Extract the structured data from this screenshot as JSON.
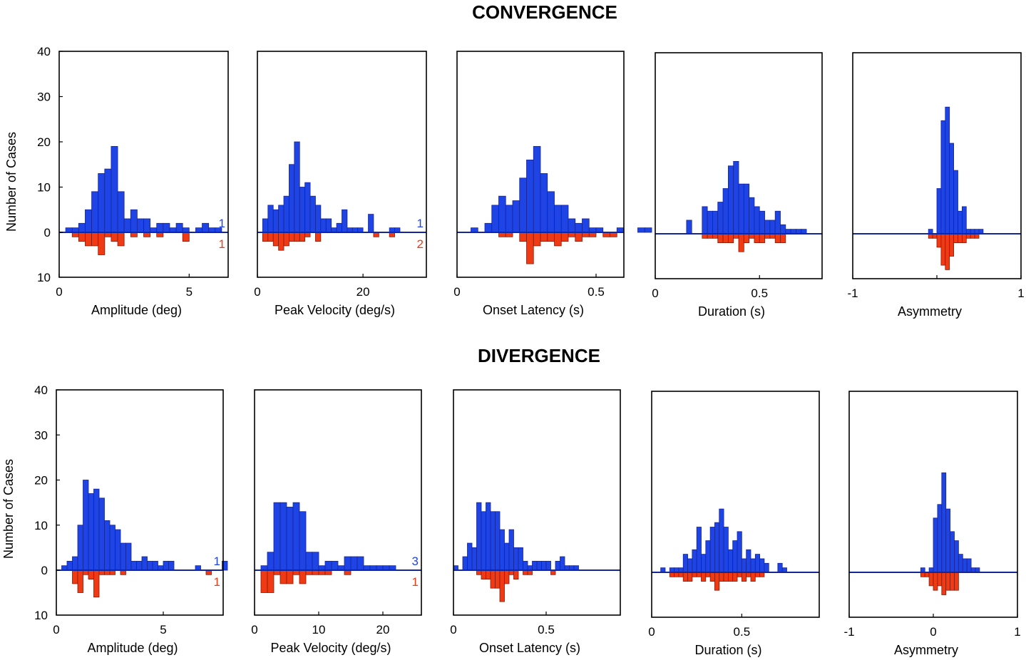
{
  "chart_data": {
    "type": "histogram",
    "colors": {
      "top": "#1e44e6",
      "bottom": "#f03a14",
      "baseline": "#15259a",
      "frame": "#000000"
    },
    "y_top_ticks": [
      "40",
      "30",
      "20",
      "10",
      "0"
    ],
    "y_bottom_tick": "10",
    "ylabel": "Number of Cases",
    "ylim_top": [
      0,
      40
    ],
    "ylim_bottom": [
      0,
      10
    ],
    "groups": [
      {
        "title": "CONVERGENCE",
        "panels": [
          {
            "xlabel": "Amplitude (deg)",
            "xlim": [
              0,
              6.5
            ],
            "xticks": [
              0,
              5
            ],
            "xticklabels": [
              "0",
              "5"
            ],
            "bin_start": 0.25,
            "bin_width": 0.25,
            "top": [
              1,
              1,
              2,
              5,
              9,
              13,
              14,
              19,
              9,
              3,
              5,
              3,
              3,
              1,
              2,
              2,
              1,
              2,
              1,
              0,
              1,
              2,
              1,
              1
            ],
            "bottom": [
              0,
              1,
              2,
              3,
              3,
              5,
              1,
              2,
              3,
              0,
              1,
              0,
              1,
              0,
              1,
              0,
              0,
              0,
              2
            ],
            "top_note": "1",
            "bottom_note": "1"
          },
          {
            "xlabel": "Peak Velocity (deg/s)",
            "xlim": [
              0,
              32
            ],
            "xticks": [
              0,
              20
            ],
            "xticklabels": [
              "0",
              "20"
            ],
            "bin_start": 1,
            "bin_width": 1,
            "top": [
              3,
              6,
              5,
              6,
              8,
              15,
              20,
              10,
              11,
              8,
              6,
              3,
              3,
              1,
              2,
              5,
              1,
              1,
              1,
              0,
              4,
              0,
              0,
              0,
              1,
              1
            ],
            "bottom": [
              2,
              2,
              3,
              4,
              3,
              2,
              2,
              2,
              1,
              0,
              2,
              0,
              0,
              0,
              0,
              0,
              0,
              0,
              0,
              0,
              0,
              1,
              0,
              0,
              1
            ],
            "top_note": "1",
            "bottom_note": "2"
          },
          {
            "xlabel": "Onset Latency (s)",
            "xlim": [
              0,
              0.6
            ],
            "xticks": [
              0,
              0.5
            ],
            "xticklabels": [
              "0",
              "0.5"
            ],
            "bin_start": 0.05,
            "bin_width": 0.025,
            "top": [
              1,
              0,
              2,
              6,
              8,
              6,
              7,
              12,
              16,
              19,
              13,
              9,
              6,
              6,
              3,
              2,
              3,
              1,
              1,
              0,
              0,
              1,
              0,
              0,
              1,
              1
            ],
            "bottom": [
              0,
              0,
              0,
              0,
              1,
              1,
              0,
              2,
              7,
              3,
              2,
              2,
              3,
              2,
              1,
              2,
              1,
              1,
              0,
              1,
              1,
              0,
              0,
              0,
              0,
              0
            ],
            "top_note": "",
            "bottom_note": ""
          },
          {
            "xlabel": "Duration (s)",
            "xlim": [
              0,
              0.8
            ],
            "xticks": [
              0,
              0.5
            ],
            "xticklabels": [
              "0",
              "0.5"
            ],
            "bin_start": 0.15,
            "bin_width": 0.025,
            "top": [
              3,
              0,
              0,
              6,
              5,
              5,
              7,
              10,
              15,
              16,
              11,
              11,
              8,
              6,
              5,
              3,
              3,
              5,
              2,
              1,
              1,
              1,
              1
            ],
            "bottom": [
              0,
              0,
              0,
              1,
              1,
              1,
              2,
              2,
              2,
              1,
              4,
              2,
              1,
              2,
              2,
              1,
              1,
              2,
              2,
              0,
              0,
              0,
              0
            ],
            "top_note": "",
            "bottom_note": ""
          },
          {
            "xlabel": "Asymmetry",
            "xlim": [
              -1,
              1
            ],
            "xticks": [
              -1,
              0,
              1
            ],
            "xticklabels": [
              "-1",
              "",
              "1"
            ],
            "bin_start": -0.1,
            "bin_width": 0.05,
            "top": [
              1,
              0,
              10,
              25,
              28,
              20,
              14,
              5,
              6,
              1,
              1,
              1,
              1,
              0,
              0
            ],
            "bottom": [
              1,
              1,
              3,
              7,
              8,
              5,
              2,
              2,
              2,
              1,
              1,
              1,
              0,
              0,
              0
            ],
            "top_note": "",
            "bottom_note": ""
          }
        ]
      },
      {
        "title": "DIVERGENCE",
        "panels": [
          {
            "xlabel": "Amplitude (deg)",
            "xlim": [
              0,
              7.8
            ],
            "xticks": [
              0,
              5
            ],
            "xticklabels": [
              "0",
              "5"
            ],
            "bin_start": 0.25,
            "bin_width": 0.25,
            "top": [
              1,
              2,
              3,
              10,
              20,
              17,
              18,
              16,
              11,
              10,
              9,
              6,
              6,
              2,
              2,
              3,
              2,
              2,
              1,
              2,
              2,
              0,
              0,
              0,
              0,
              1,
              0,
              0,
              0,
              0,
              2
            ],
            "bottom": [
              0,
              0,
              3,
              5,
              1,
              2,
              6,
              1,
              1,
              1,
              0,
              1,
              0,
              0,
              0,
              0,
              0,
              0,
              0,
              0,
              0,
              0,
              0,
              0,
              0,
              0,
              0,
              1,
              0,
              0
            ],
            "top_note": "1",
            "bottom_note": "1"
          },
          {
            "xlabel": "Peak Velocity (deg/s)",
            "xlim": [
              0,
              26
            ],
            "xticks": [
              0,
              10,
              20
            ],
            "xticklabels": [
              "0",
              "10",
              "20"
            ],
            "bin_start": 1,
            "bin_width": 1,
            "top": [
              1,
              4,
              15,
              15,
              14,
              15,
              13,
              4,
              4,
              1,
              2,
              2,
              1,
              3,
              3,
              3,
              1,
              1,
              1,
              1,
              1
            ],
            "bottom": [
              5,
              5,
              1,
              3,
              3,
              1,
              3,
              1,
              1,
              1,
              1,
              0,
              0,
              1,
              0,
              0,
              0,
              0,
              0,
              0,
              0
            ],
            "top_note": "3",
            "bottom_note": "1"
          },
          {
            "xlabel": "Onset Latency (s)",
            "xlim": [
              0,
              0.9
            ],
            "xticks": [
              0,
              0.5
            ],
            "xticklabels": [
              "0",
              "0.5"
            ],
            "bin_start": 0.0,
            "bin_width": 0.025,
            "top": [
              1,
              0,
              3,
              6,
              5,
              15,
              13,
              15,
              13,
              13,
              9,
              6,
              9,
              5,
              5,
              2,
              1,
              2,
              2,
              2,
              2,
              0,
              2,
              3,
              1,
              1,
              1
            ],
            "bottom": [
              0,
              0,
              0,
              0,
              0,
              1,
              2,
              2,
              4,
              4,
              7,
              3,
              1,
              2,
              0,
              1,
              1,
              0,
              0,
              0,
              0,
              1,
              0,
              0,
              0,
              0,
              0
            ],
            "top_note": "",
            "bottom_note": ""
          },
          {
            "xlabel": "Duration (s)",
            "xlim": [
              0,
              0.93
            ],
            "xticks": [
              0,
              0.5
            ],
            "xticklabels": [
              "0",
              "0.5"
            ],
            "bin_start": 0.05,
            "bin_width": 0.025,
            "top": [
              1,
              0,
              1,
              1,
              1,
              4,
              3,
              5,
              10,
              4,
              7,
              10,
              11,
              14,
              10,
              5,
              7,
              9,
              3,
              5,
              3,
              4,
              3,
              2,
              0,
              0,
              2,
              1
            ],
            "bottom": [
              0,
              0,
              1,
              1,
              1,
              2,
              2,
              1,
              1,
              2,
              1,
              2,
              4,
              2,
              2,
              2,
              2,
              1,
              2,
              1,
              2,
              1,
              1,
              0,
              0,
              0,
              0,
              0
            ],
            "top_note": "",
            "bottom_note": ""
          },
          {
            "xlabel": "Asymmetry",
            "xlim": [
              -1,
              1
            ],
            "xticks": [
              -1,
              0,
              1
            ],
            "xticklabels": [
              "-1",
              "0",
              "1"
            ],
            "bin_start": -0.15,
            "bin_width": 0.05,
            "top": [
              1,
              0,
              1,
              12,
              15,
              22,
              14,
              9,
              7,
              4,
              3,
              3,
              1,
              1,
              0
            ],
            "bottom": [
              1,
              1,
              3,
              4,
              3,
              5,
              4,
              4,
              4,
              0,
              0,
              0,
              0,
              0,
              0
            ],
            "top_note": "",
            "bottom_note": ""
          }
        ]
      }
    ]
  }
}
